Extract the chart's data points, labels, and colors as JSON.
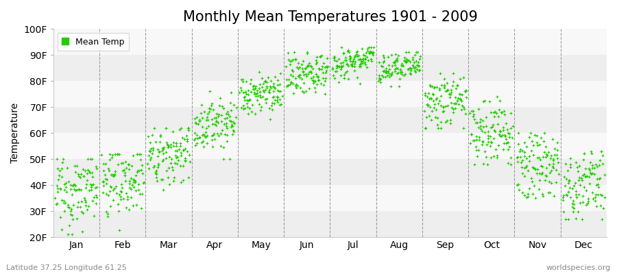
{
  "title": "Monthly Mean Temperatures 1901 - 2009",
  "ylabel": "Temperature",
  "xlabel_bottom_left": "Latitude 37.25 Longitude 61.25",
  "xlabel_bottom_right": "worldspecies.org",
  "legend_label": "Mean Temp",
  "dot_color": "#22cc00",
  "background_color": "#ffffff",
  "plot_bg_color": "#ffffff",
  "band_colors": [
    "#eeeeee",
    "#f8f8f8"
  ],
  "ylim": [
    20,
    100
  ],
  "yticks": [
    20,
    30,
    40,
    50,
    60,
    70,
    80,
    90,
    100
  ],
  "ytick_labels": [
    "20F",
    "30F",
    "40F",
    "50F",
    "60F",
    "70F",
    "80F",
    "90F",
    "100F"
  ],
  "months": [
    "Jan",
    "Feb",
    "Mar",
    "Apr",
    "May",
    "Jun",
    "Jul",
    "Aug",
    "Sep",
    "Oct",
    "Nov",
    "Dec"
  ],
  "month_mean_F": [
    38,
    42,
    52,
    64,
    75,
    83,
    88,
    85,
    72,
    60,
    48,
    40
  ],
  "month_std_F": [
    7,
    7,
    6,
    5,
    4,
    4,
    3,
    3,
    5,
    6,
    6,
    7
  ],
  "month_min_F": [
    21,
    21,
    35,
    50,
    63,
    74,
    79,
    78,
    62,
    48,
    35,
    27
  ],
  "month_max_F": [
    50,
    52,
    62,
    76,
    86,
    91,
    93,
    91,
    83,
    76,
    60,
    53
  ],
  "n_years": 109,
  "title_fontsize": 15,
  "axis_fontsize": 10,
  "tick_fontsize": 10,
  "dot_size": 5,
  "dot_marker": "+"
}
